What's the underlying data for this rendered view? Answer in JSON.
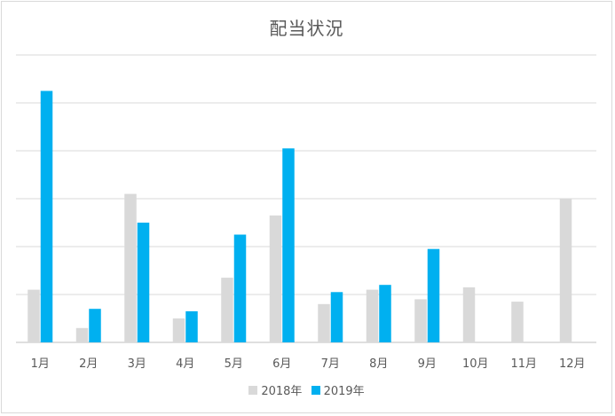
{
  "chart_data": {
    "type": "bar",
    "title": "配当状況",
    "xlabel": "",
    "ylabel": "",
    "categories": [
      "1月",
      "2月",
      "3月",
      "4月",
      "5月",
      "6月",
      "7月",
      "8月",
      "9月",
      "10月",
      "11月",
      "12月"
    ],
    "series": [
      {
        "name": "2018年",
        "color": "#d9d9d9",
        "values": [
          1.1,
          0.3,
          3.1,
          0.5,
          1.35,
          2.65,
          0.8,
          1.1,
          0.9,
          1.15,
          0.85,
          3.0
        ]
      },
      {
        "name": "2019年",
        "color": "#00b0f0",
        "values": [
          5.25,
          0.7,
          2.5,
          0.65,
          2.25,
          4.05,
          1.05,
          1.2,
          1.95,
          0,
          0,
          0
        ]
      }
    ],
    "ylim": [
      0,
      6
    ],
    "grid": true,
    "legend_position": "bottom"
  }
}
